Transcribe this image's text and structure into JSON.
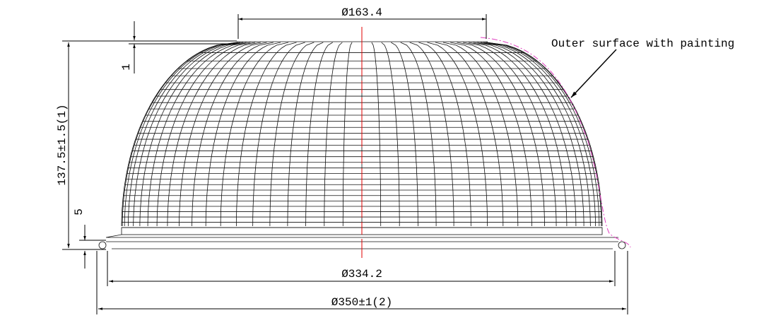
{
  "dimensions": {
    "top_diameter": "Ø163.4",
    "height": "137.5±1.5(1)",
    "rim_thickness": "1",
    "flange_height": "5",
    "inner_diameter": "Ø334.2",
    "outer_diameter": "Ø350±1(2)"
  },
  "annotation": "Outer surface with painting"
}
